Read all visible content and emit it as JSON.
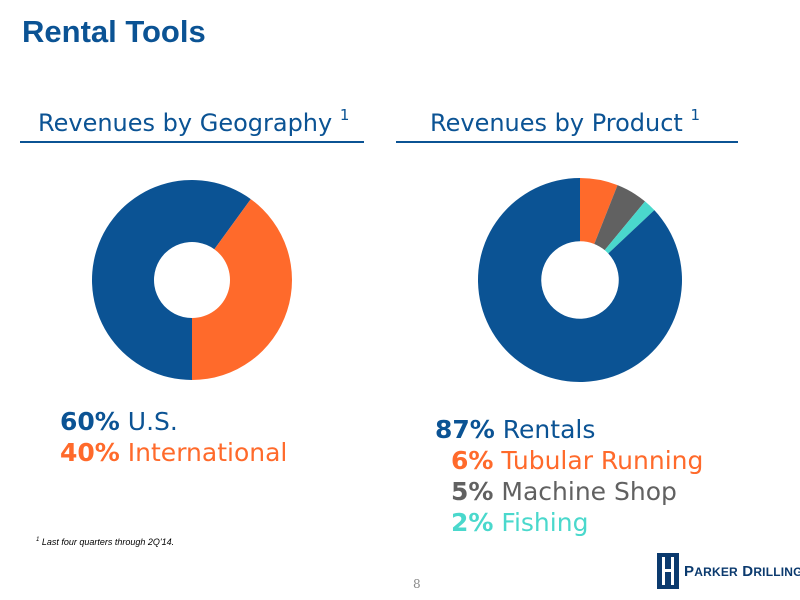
{
  "slide": {
    "title": "Rental Tools",
    "footnote_marker": "1",
    "footnote_text": "Last four quarters through 2Q'14.",
    "page_number": "8",
    "logo": {
      "initial_1": "P",
      "rest_1": "ARKER",
      "initial_2": "D",
      "rest_2": "RILLING"
    }
  },
  "colors": {
    "primary": "#0b5394",
    "orange": "#ff6a2b",
    "gray": "#616161",
    "teal": "#4ad8cc"
  },
  "chart_data": [
    {
      "type": "pie",
      "title": "Revenues by Geography",
      "title_superscript": "1",
      "donut": true,
      "start_angle_deg": 180,
      "slices": [
        {
          "label": "U.S.",
          "value": 60,
          "pct_text": "60%",
          "color": "#0b5394"
        },
        {
          "label": "International",
          "value": 40,
          "pct_text": "40%",
          "color": "#ff6a2b"
        }
      ]
    },
    {
      "type": "pie",
      "title": "Revenues by Product",
      "title_superscript": "1",
      "donut": true,
      "start_angle_deg": 0,
      "slices": [
        {
          "label": "Tubular Running",
          "value": 6,
          "pct_text": "6%",
          "color": "#ff6a2b"
        },
        {
          "label": "Machine Shop",
          "value": 5,
          "pct_text": "5%",
          "color": "#616161"
        },
        {
          "label": "Fishing",
          "value": 2,
          "pct_text": "2%",
          "color": "#4ad8cc"
        },
        {
          "label": "Rentals",
          "value": 87,
          "pct_text": "87%",
          "color": "#0b5394"
        }
      ],
      "legend_order": [
        3,
        0,
        1,
        2
      ]
    }
  ]
}
